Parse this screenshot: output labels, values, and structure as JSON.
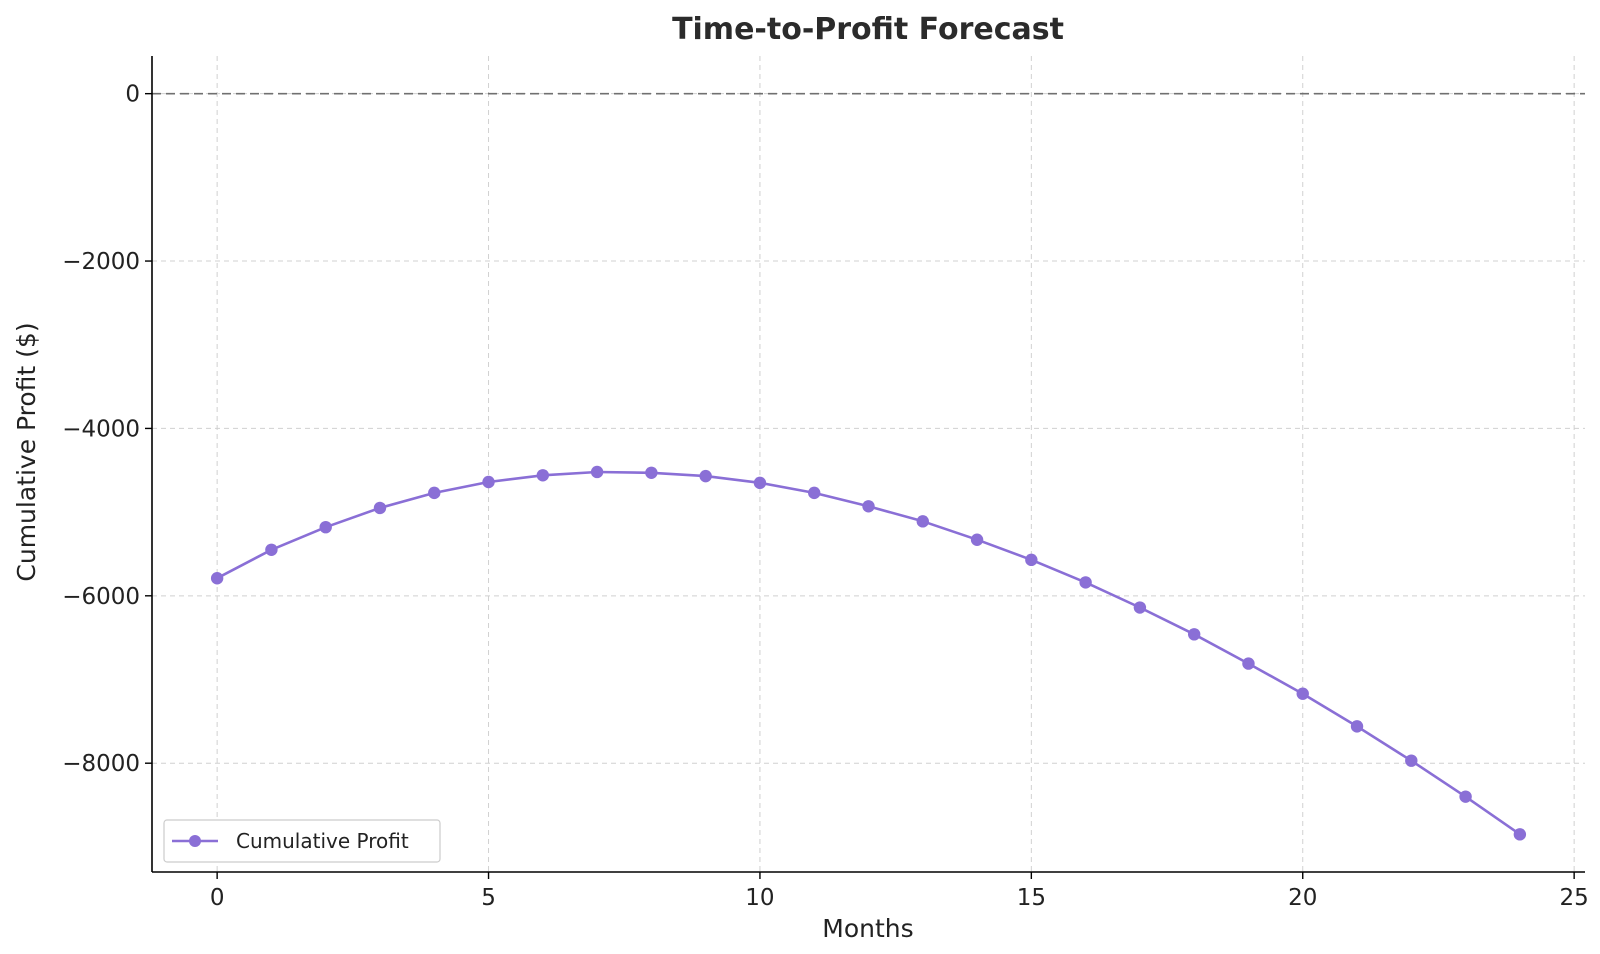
{
  "chart_data": {
    "type": "line",
    "title": "Time-to-Profit Forecast",
    "xlabel": "Months",
    "ylabel": "Cumulative Profit ($)",
    "xlim": [
      -1.2,
      25.2
    ],
    "ylim": [
      -9300,
      450
    ],
    "xticks": [
      0,
      5,
      10,
      15,
      20,
      25
    ],
    "yticks": [
      0,
      -2000,
      -4000,
      -6000,
      -8000
    ],
    "ytick_labels": [
      "0",
      "−2000",
      "−4000",
      "−6000",
      "−8000"
    ],
    "grid": true,
    "reference_line": {
      "y": 0,
      "style": "dashed",
      "color": "#707070"
    },
    "legend": {
      "position": "lower-left",
      "entries": [
        "Cumulative Profit"
      ]
    },
    "series": [
      {
        "name": "Cumulative Profit",
        "color": "#8a6fd6",
        "marker": "circle",
        "x": [
          0,
          1,
          2,
          3,
          4,
          5,
          6,
          7,
          8,
          9,
          10,
          11,
          12,
          13,
          14,
          15,
          16,
          17,
          18,
          19,
          20,
          21,
          22,
          23,
          24
        ],
        "y": [
          -5790,
          -5450,
          -5180,
          -4950,
          -4770,
          -4640,
          -4560,
          -4520,
          -4530,
          -4570,
          -4650,
          -4770,
          -4930,
          -5110,
          -5330,
          -5570,
          -5840,
          -6140,
          -6460,
          -6810,
          -7170,
          -7560,
          -7970,
          -8400,
          -8850
        ]
      }
    ]
  }
}
